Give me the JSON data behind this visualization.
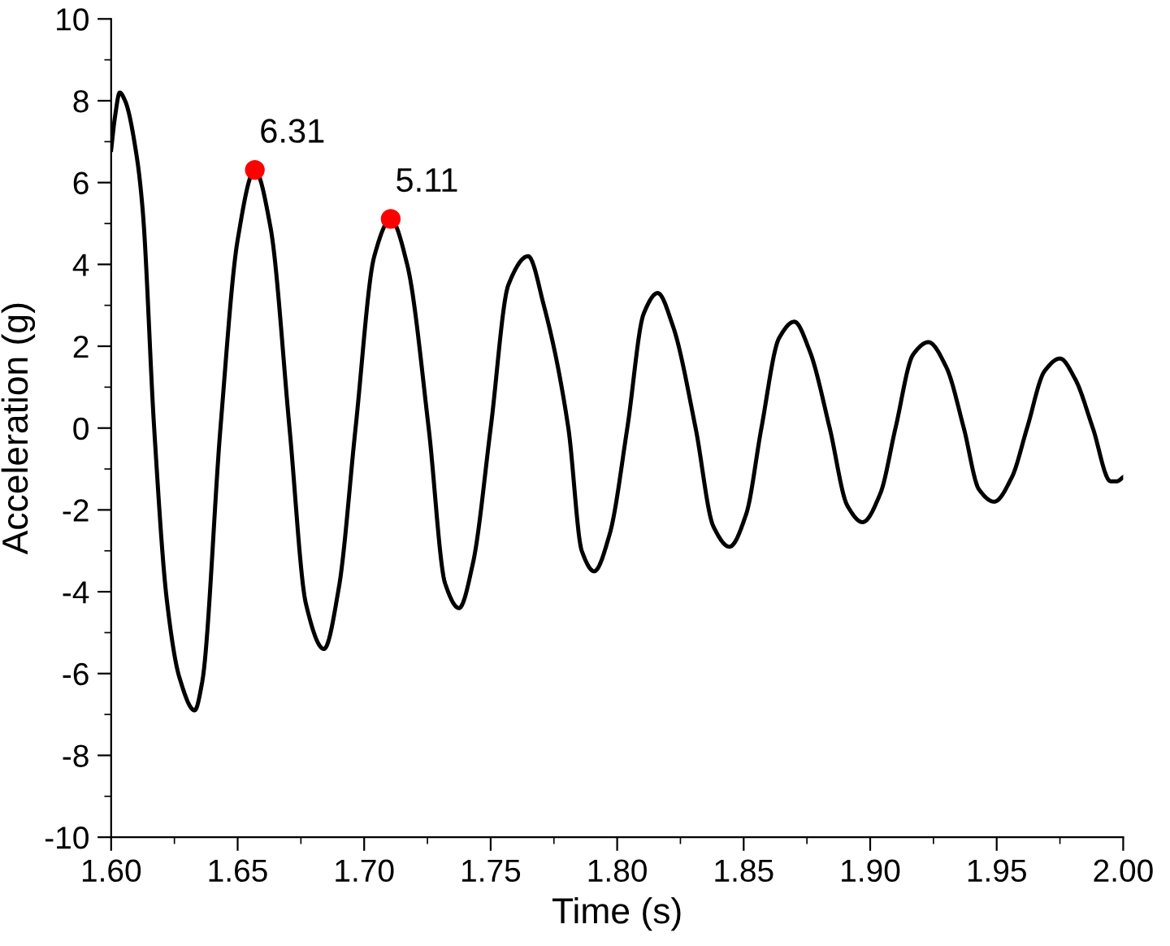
{
  "chart_data": {
    "type": "line",
    "xlabel": "Time (s)",
    "ylabel": "Acceleration (g)",
    "xlim": [
      1.6,
      2.0
    ],
    "ylim": [
      -10,
      10
    ],
    "xticks": [
      {
        "value": 1.6,
        "label": "1.60"
      },
      {
        "value": 1.65,
        "label": "1.65"
      },
      {
        "value": 1.7,
        "label": "1.70"
      },
      {
        "value": 1.75,
        "label": "1.75"
      },
      {
        "value": 1.8,
        "label": "1.80"
      },
      {
        "value": 1.85,
        "label": "1.85"
      },
      {
        "value": 1.9,
        "label": "1.90"
      },
      {
        "value": 1.95,
        "label": "1.95"
      },
      {
        "value": 2.0,
        "label": "2.00"
      }
    ],
    "yticks": [
      -10,
      -8,
      -6,
      -4,
      -2,
      0,
      2,
      4,
      6,
      8,
      10
    ],
    "grid": false,
    "legend": false,
    "series": [
      {
        "color": "#000000",
        "marker": "none",
        "line_style": "solid",
        "x": [
          1.6,
          1.6015,
          1.6034,
          1.6055,
          1.6102,
          1.6125,
          1.617,
          1.622,
          1.627,
          1.633,
          1.636,
          1.6432,
          1.65,
          1.6568,
          1.663,
          1.6705,
          1.677,
          1.6841,
          1.69,
          1.6966,
          1.704,
          1.7105,
          1.717,
          1.7255,
          1.732,
          1.7375,
          1.743,
          1.75,
          1.757,
          1.7648,
          1.771,
          1.7807,
          1.786,
          1.7909,
          1.797,
          1.804,
          1.8105,
          1.816,
          1.822,
          1.831,
          1.838,
          1.8444,
          1.851,
          1.857,
          1.864,
          1.87,
          1.876,
          1.884,
          1.891,
          1.897,
          1.904,
          1.91,
          1.917,
          1.923,
          1.93,
          1.937,
          1.943,
          1.949,
          1.956,
          1.962,
          1.969,
          1.975,
          1.981,
          1.988,
          1.995,
          1.9975,
          2.0
        ],
        "values": [
          6.8,
          7.6,
          8.2,
          8.0,
          6.6,
          5.3,
          0,
          -4.2,
          -6.1,
          -6.9,
          -6.2,
          0,
          4.6,
          6.3,
          4.9,
          0,
          -4.3,
          -5.4,
          -3.9,
          0,
          4.2,
          5.1,
          4.0,
          0,
          -3.8,
          -4.4,
          -3.3,
          0,
          3.5,
          4.2,
          3.0,
          0,
          -3.0,
          -3.5,
          -2.6,
          0,
          2.8,
          3.3,
          2.5,
          0,
          -2.4,
          -2.9,
          -2.1,
          0,
          2.2,
          2.6,
          1.9,
          0,
          -1.9,
          -2.3,
          -1.6,
          0,
          1.8,
          2.1,
          1.5,
          0,
          -1.5,
          -1.8,
          -1.2,
          0,
          1.4,
          1.7,
          1.2,
          0,
          -1.3,
          -1.3,
          -1.2
        ]
      },
      {
        "type": "scatter",
        "color": "#ff0000",
        "marker": "circle",
        "x": [
          1.6568,
          1.7105
        ],
        "values": [
          6.31,
          5.11
        ],
        "value_labels": [
          "6.31",
          "5.11"
        ]
      }
    ]
  }
}
